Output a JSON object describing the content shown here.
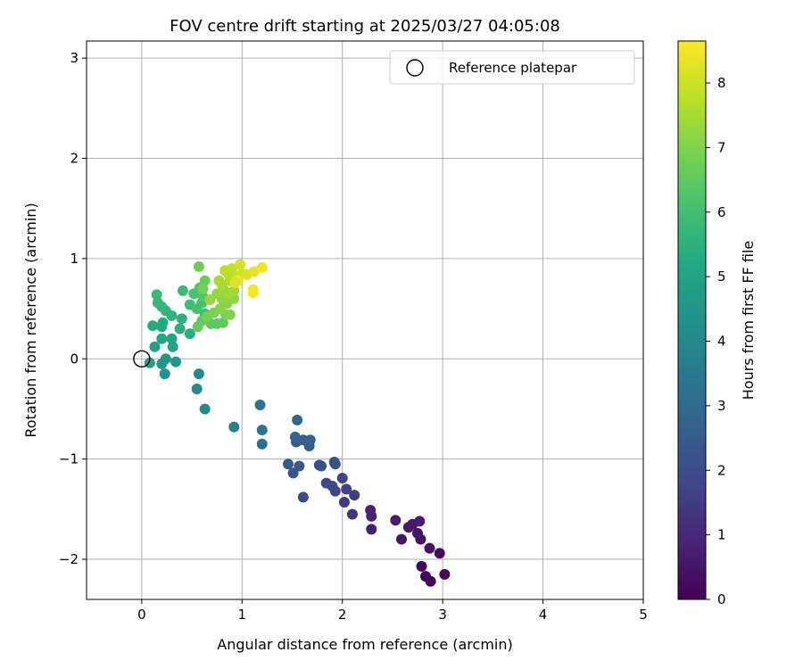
{
  "chart_data": {
    "type": "scatter",
    "title": "FOV centre drift starting at 2025/03/27 04:05:08",
    "xlabel": "Angular distance from reference (arcmin)",
    "ylabel": "Rotation from reference (arcmin)",
    "xlim": [
      -0.55,
      5.0
    ],
    "ylim": [
      -2.4,
      3.17
    ],
    "xticks": [
      0,
      1,
      2,
      3,
      4,
      5
    ],
    "yticks": [
      -2,
      -1,
      0,
      1,
      2,
      3
    ],
    "grid": true,
    "legend": {
      "placement": "upper right",
      "entries": [
        "Reference platepar"
      ]
    },
    "colorbar": {
      "label": "Hours from first FF file",
      "range": [
        0,
        8.65
      ],
      "ticks": [
        0,
        1,
        2,
        3,
        4,
        5,
        6,
        7,
        8
      ],
      "colormap": "viridis"
    },
    "reference_point": {
      "x": 0,
      "y": 0,
      "label": "Reference platepar"
    },
    "series": [
      {
        "points": [
          [
            2.88,
            -2.22,
            0.05
          ],
          [
            2.83,
            -2.17,
            0.1
          ],
          [
            3.02,
            -2.15,
            0.15
          ],
          [
            2.79,
            -2.07,
            0.2
          ],
          [
            2.97,
            -1.94,
            0.3
          ],
          [
            2.87,
            -1.89,
            0.35
          ],
          [
            2.78,
            -1.8,
            0.4
          ],
          [
            2.59,
            -1.8,
            0.5
          ],
          [
            2.75,
            -1.74,
            0.45
          ],
          [
            2.66,
            -1.68,
            0.55
          ],
          [
            2.7,
            -1.65,
            0.6
          ],
          [
            2.77,
            -1.62,
            0.65
          ],
          [
            2.29,
            -1.7,
            0.75
          ],
          [
            2.53,
            -1.61,
            0.7
          ],
          [
            2.29,
            -1.57,
            0.8
          ],
          [
            2.28,
            -1.51,
            0.85
          ],
          [
            2.1,
            -1.55,
            1.3
          ],
          [
            2.12,
            -1.36,
            1.5
          ],
          [
            2.02,
            -1.43,
            1.4
          ],
          [
            2.04,
            -1.3,
            1.6
          ],
          [
            1.93,
            -1.32,
            1.7
          ],
          [
            1.9,
            -1.27,
            1.8
          ],
          [
            1.84,
            -1.24,
            1.9
          ],
          [
            2.0,
            -1.19,
            1.75
          ],
          [
            1.61,
            -1.38,
            2.0
          ],
          [
            1.77,
            -1.06,
            2.1
          ],
          [
            1.79,
            -1.07,
            2.15
          ],
          [
            1.92,
            -1.03,
            2.2
          ],
          [
            1.93,
            -1.05,
            2.25
          ],
          [
            1.51,
            -1.14,
            2.3
          ],
          [
            1.57,
            -1.07,
            2.35
          ],
          [
            1.46,
            -1.05,
            2.4
          ],
          [
            1.67,
            -0.87,
            2.5
          ],
          [
            1.54,
            -0.83,
            2.55
          ],
          [
            1.61,
            -0.81,
            2.6
          ],
          [
            1.68,
            -0.81,
            2.65
          ],
          [
            1.53,
            -0.78,
            2.7
          ],
          [
            1.55,
            -0.61,
            2.8
          ],
          [
            1.2,
            -0.85,
            3.2
          ],
          [
            1.2,
            -0.71,
            3.3
          ],
          [
            1.18,
            -0.46,
            3.4
          ],
          [
            0.92,
            -0.68,
            3.7
          ],
          [
            0.63,
            -0.5,
            4.0
          ],
          [
            0.55,
            -0.3,
            4.1
          ],
          [
            0.57,
            -0.15,
            4.2
          ],
          [
            0.23,
            -0.15,
            4.4
          ],
          [
            0.2,
            -0.05,
            4.5
          ],
          [
            0.34,
            -0.03,
            4.6
          ],
          [
            0.24,
            0.0,
            4.55
          ],
          [
            0.08,
            -0.04,
            4.8
          ],
          [
            0.13,
            0.12,
            4.9
          ],
          [
            0.31,
            0.12,
            5.0
          ],
          [
            0.2,
            0.2,
            5.1
          ],
          [
            0.3,
            0.2,
            5.05
          ],
          [
            0.2,
            0.32,
            5.2
          ],
          [
            0.11,
            0.33,
            5.3
          ],
          [
            0.21,
            0.36,
            5.25
          ],
          [
            0.48,
            0.25,
            5.4
          ],
          [
            0.38,
            0.3,
            5.45
          ],
          [
            0.4,
            0.4,
            5.5
          ],
          [
            0.3,
            0.43,
            5.6
          ],
          [
            0.24,
            0.48,
            5.65
          ],
          [
            0.2,
            0.52,
            5.7
          ],
          [
            0.16,
            0.56,
            5.75
          ],
          [
            0.15,
            0.64,
            5.8
          ],
          [
            0.41,
            0.68,
            5.85
          ],
          [
            0.48,
            0.54,
            5.9
          ],
          [
            0.63,
            0.45,
            6.0
          ],
          [
            0.55,
            0.5,
            6.1
          ],
          [
            0.6,
            0.56,
            6.05
          ],
          [
            0.52,
            0.65,
            6.15
          ],
          [
            0.58,
            0.71,
            6.2
          ],
          [
            0.61,
            0.62,
            6.3
          ],
          [
            0.75,
            0.35,
            6.4
          ],
          [
            0.81,
            0.36,
            6.5
          ],
          [
            0.69,
            0.35,
            6.45
          ],
          [
            0.6,
            0.38,
            6.55
          ],
          [
            0.56,
            0.32,
            6.6
          ],
          [
            0.63,
            0.78,
            6.7
          ],
          [
            0.57,
            0.92,
            6.75
          ],
          [
            0.61,
            0.7,
            6.8
          ],
          [
            0.65,
            0.42,
            6.85
          ],
          [
            0.72,
            0.46,
            6.9
          ],
          [
            0.84,
            0.44,
            6.95
          ],
          [
            0.88,
            0.44,
            7.0
          ],
          [
            0.78,
            0.5,
            7.05
          ],
          [
            0.85,
            0.55,
            7.1
          ],
          [
            0.8,
            0.6,
            7.15
          ],
          [
            0.92,
            0.6,
            7.2
          ],
          [
            0.75,
            0.65,
            7.25
          ],
          [
            0.68,
            0.59,
            7.3
          ],
          [
            0.82,
            0.69,
            7.35
          ],
          [
            0.86,
            0.65,
            7.4
          ],
          [
            0.92,
            0.68,
            7.45
          ],
          [
            0.77,
            0.78,
            7.5
          ],
          [
            0.8,
            0.74,
            7.55
          ],
          [
            0.88,
            0.78,
            7.6
          ],
          [
            0.87,
            0.84,
            7.7
          ],
          [
            0.83,
            0.88,
            7.75
          ],
          [
            0.9,
            0.9,
            7.8
          ],
          [
            0.95,
            0.82,
            7.9
          ],
          [
            1.0,
            0.85,
            8.0
          ],
          [
            0.98,
            0.94,
            8.1
          ],
          [
            1.05,
            0.84,
            8.2
          ],
          [
            1.12,
            0.87,
            8.3
          ],
          [
            1.2,
            0.91,
            8.45
          ],
          [
            1.11,
            0.66,
            8.5
          ],
          [
            1.11,
            0.69,
            8.55
          ],
          [
            0.96,
            0.78,
            8.4
          ],
          [
            0.93,
            0.76,
            8.25
          ]
        ]
      }
    ]
  }
}
